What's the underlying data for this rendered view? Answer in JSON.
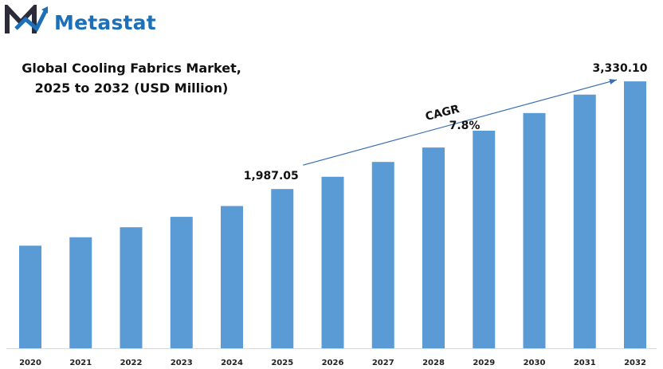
{
  "brand": {
    "name": "Metastat",
    "color": "#1d6fb8",
    "icon": "metastat-m-logo-icon"
  },
  "chart_data": {
    "type": "bar",
    "title_line1": "Global Cooling Fabrics Market,",
    "title_line2": "2025 to 2032 (USD Million)",
    "categories": [
      "2020",
      "2021",
      "2022",
      "2023",
      "2024",
      "2025",
      "2026",
      "2027",
      "2028",
      "2029",
      "2030",
      "2031",
      "2032"
    ],
    "values": [
      1280,
      1385,
      1510,
      1640,
      1775,
      1987.05,
      2140,
      2325,
      2505,
      2715,
      2935,
      3165,
      3330.1
    ],
    "data_labels": [
      {
        "category": "2025",
        "text": "1,987.05"
      },
      {
        "category": "2032",
        "text": "3,330.10"
      }
    ],
    "cagr_label": "CAGR",
    "cagr_value": "7.8%",
    "bar_color": "#5b9bd5",
    "arrow_color": "#3a6fb0",
    "ylim": [
      0,
      3550
    ],
    "grid": false,
    "legend": "none"
  }
}
